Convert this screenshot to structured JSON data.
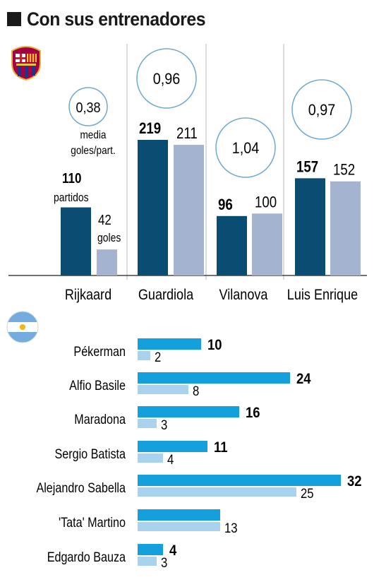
{
  "title": "Con sus entrenadores",
  "colors": {
    "barca_matches": "#0b4d72",
    "barca_goals": "#a4b3cf",
    "circle_stroke": "#6fa8d0",
    "arg_matches": "#14a0dc",
    "arg_goals": "#a8d2ee",
    "divider": "#d0d0d0"
  },
  "chart_data": [
    {
      "type": "bar",
      "team": "FC Barcelona",
      "icon": "fc-barcelona-crest-icon",
      "categories": [
        "Rijkaard",
        "Guardiola",
        "Vilanova",
        "Luis Enrique"
      ],
      "series": [
        {
          "name": "partidos",
          "values": [
            110,
            219,
            96,
            157
          ]
        },
        {
          "name": "goles",
          "values": [
            42,
            211,
            100,
            152
          ]
        }
      ],
      "averages": [
        "0,38",
        "0,96",
        "1,04",
        "0,97"
      ],
      "value_labels": {
        "matches": [
          "110",
          "219",
          "96",
          "157"
        ],
        "goals": [
          "42",
          "211",
          "100",
          "152"
        ]
      },
      "annotations": {
        "matches_unit": "partidos",
        "goals_unit": "goles",
        "average_line1": "media",
        "average_line2": "goles/part."
      },
      "ylim": [
        0,
        219
      ]
    },
    {
      "type": "bar",
      "orientation": "horizontal",
      "team": "Argentina",
      "icon": "argentina-flag-icon",
      "categories": [
        "Pékerman",
        "Alfio Basile",
        "Maradona",
        "Sergio Batista",
        "Alejandro Sabella",
        "'Tata' Martino",
        "Edgardo Bauza"
      ],
      "series": [
        {
          "name": "partidos",
          "values": [
            10,
            24,
            16,
            11,
            32,
            13,
            4
          ]
        },
        {
          "name": "goles",
          "values": [
            2,
            8,
            3,
            4,
            25,
            13,
            3
          ]
        }
      ],
      "value_labels": {
        "matches": [
          "10",
          "24",
          "16",
          "11",
          "32",
          "",
          "4"
        ],
        "goals": [
          "2",
          "8",
          "3",
          "4",
          "25",
          "13",
          "3"
        ]
      },
      "xlim": [
        0,
        32
      ]
    }
  ]
}
